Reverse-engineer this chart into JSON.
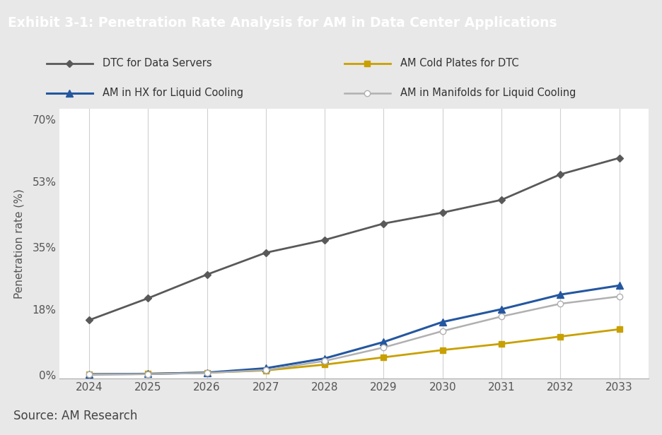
{
  "title": "Exhibit 3-1: Penetration Rate Analysis for AM in Data Center Applications",
  "title_bg_color": "#1e1e2d",
  "title_text_color": "#ffffff",
  "outer_bg_color": "#e8e8e8",
  "plot_bg_color": "#ffffff",
  "legend_bg_color": "#ffffff",
  "source_text": "Source: AM Research",
  "ylabel": "Penetration rate (%)",
  "years": [
    2024,
    2025,
    2026,
    2027,
    2028,
    2029,
    2030,
    2031,
    2032,
    2033
  ],
  "series": [
    {
      "label": "DTC for Data Servers",
      "color": "#595959",
      "marker": "D",
      "marker_size": 5,
      "linewidth": 2.0,
      "values": [
        15.0,
        21.0,
        27.5,
        33.5,
        37.0,
        41.5,
        44.5,
        48.0,
        55.0,
        59.5
      ]
    },
    {
      "label": "AM Cold Plates for DTC",
      "color": "#c8a000",
      "marker": "s",
      "marker_size": 6,
      "linewidth": 2.0,
      "values": [
        0.2,
        0.3,
        0.6,
        1.2,
        2.8,
        4.8,
        6.8,
        8.5,
        10.5,
        12.5
      ]
    },
    {
      "label": "AM in HX for Liquid Cooling",
      "color": "#2457a0",
      "marker": "^",
      "marker_size": 7,
      "linewidth": 2.2,
      "values": [
        0.15,
        0.25,
        0.6,
        1.8,
        4.5,
        9.0,
        14.5,
        18.0,
        22.0,
        24.5
      ]
    },
    {
      "label": "AM in Manifolds for Liquid Cooling",
      "color": "#b0b0b0",
      "marker": "o",
      "marker_size": 6,
      "linewidth": 1.8,
      "marker_facecolor": "white",
      "values": [
        0.1,
        0.2,
        0.5,
        1.3,
        3.8,
        7.5,
        12.0,
        16.0,
        19.5,
        21.5
      ]
    }
  ],
  "yticks": [
    0,
    18,
    35,
    53,
    70
  ],
  "ytick_labels": [
    "0%",
    "18%",
    "35%",
    "53%",
    "70%"
  ],
  "ylim": [
    -1,
    73
  ],
  "xlim": [
    2023.5,
    2033.5
  ],
  "grid_color": "#d0d0d0"
}
